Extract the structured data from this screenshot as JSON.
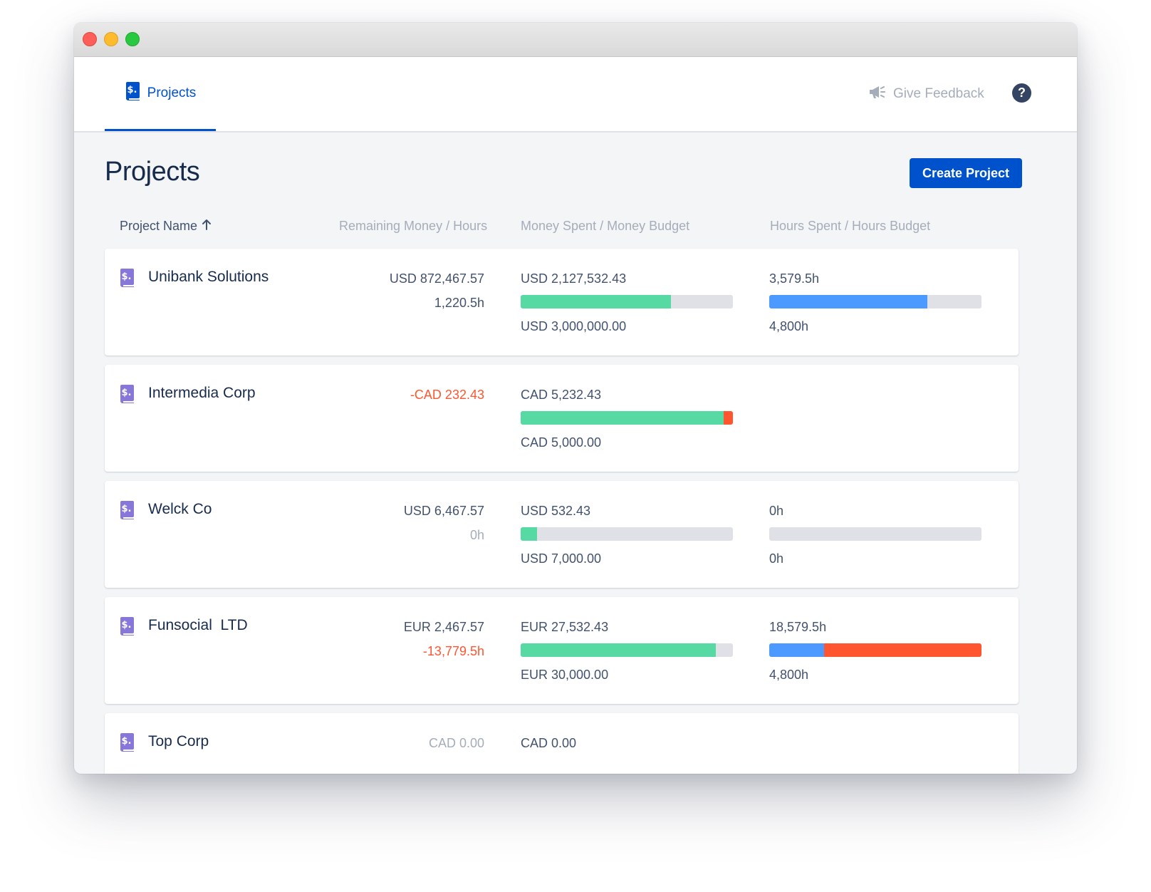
{
  "window": {
    "title": ""
  },
  "nav": {
    "tab_label": "Projects",
    "feedback_label": "Give Feedback",
    "help_label": "?"
  },
  "page": {
    "title": "Projects",
    "create_button": "Create Project"
  },
  "columns": {
    "name": "Project Name",
    "remaining": "Remaining Money / Hours",
    "money": "Money Spent / Money Budget",
    "hours": "Hours Spent / Hours Budget"
  },
  "colors": {
    "accent": "#0052cc",
    "money_fill": "#57d9a3",
    "hours_fill": "#4c9aff",
    "over": "#ff5630",
    "track": "#dfe1e6",
    "icon": "#8777d9"
  },
  "projects": [
    {
      "name": "Unibank Solutions",
      "remaining_money": "USD 872,467.57",
      "remaining_hours": "1,220.5h",
      "money_spent": "USD 2,127,532.43",
      "money_budget": "USD 3,000,000.00",
      "money_progress": 0.709,
      "hours_spent": "3,579.5h",
      "hours_budget": "4,800h",
      "hours_progress": 0.746
    },
    {
      "name": "Intermedia Corp",
      "remaining_money": "-CAD 232.43",
      "remaining_hours": "",
      "money_spent": "CAD 5,232.43",
      "money_budget": "CAD 5,000.00",
      "money_progress": 1.046,
      "hours_spent": "",
      "hours_budget": "",
      "hours_progress": null
    },
    {
      "name": "Welck Co",
      "remaining_money": "USD 6,467.57",
      "remaining_hours": "0h",
      "money_spent": "USD 532.43",
      "money_budget": "USD 7,000.00",
      "money_progress": 0.076,
      "hours_spent": "0h",
      "hours_budget": "0h",
      "hours_progress": 0
    },
    {
      "name": "Funsocial  LTD",
      "remaining_money": "EUR 2,467.57",
      "remaining_hours": "-13,779.5h",
      "money_spent": "EUR 27,532.43",
      "money_budget": "EUR 30,000.00",
      "money_progress": 0.918,
      "hours_spent": "18,579.5h",
      "hours_budget": "4,800h",
      "hours_progress": 3.871
    },
    {
      "name": "Top Corp",
      "remaining_money": "CAD 0.00",
      "remaining_hours": "",
      "money_spent": "CAD 0.00",
      "money_budget": "",
      "money_progress": null,
      "hours_spent": "",
      "hours_budget": "",
      "hours_progress": null
    }
  ]
}
